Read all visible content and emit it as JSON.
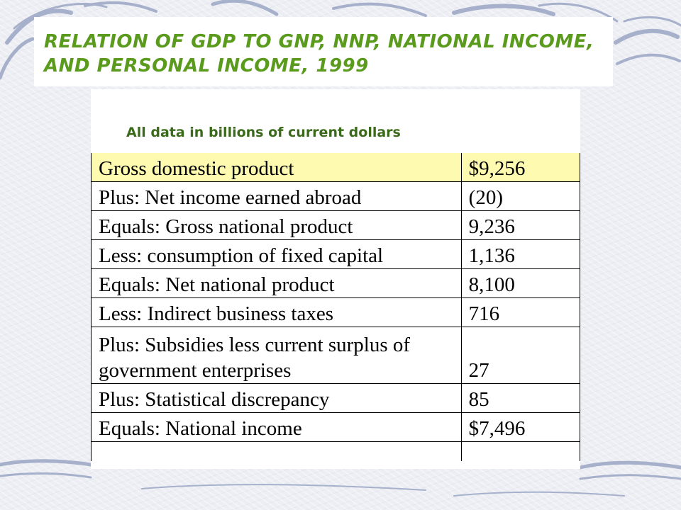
{
  "title": "Relation of GDP to GNP, NNP, National Income, and Personal Income, 1999",
  "subtitle": "All data in billions of current dollars",
  "colors": {
    "title": "#5a9a1c",
    "subtitle": "#3a6a1a",
    "highlight_row": "#fefbb0",
    "background": "#eceef3",
    "swirl": "#9aa6c4"
  },
  "rows": [
    {
      "label": "Gross domestic product",
      "value": "$9,256"
    },
    {
      "label": "Plus: Net income earned abroad",
      "value": "(20)"
    },
    {
      "label": "Equals: Gross national product",
      "value": "9,236"
    },
    {
      "label": "Less: consumption of fixed capital",
      "value": "1,136"
    },
    {
      "label": "Equals: Net national product",
      "value": "8,100"
    },
    {
      "label": "Less: Indirect business taxes",
      "value": "716"
    },
    {
      "label": "Plus: Subsidies less current surplus of government enterprises",
      "value": "27"
    },
    {
      "label": "Plus: Statistical discrepancy",
      "value": "85"
    },
    {
      "label": "Equals: National income",
      "value": "$7,496"
    }
  ]
}
